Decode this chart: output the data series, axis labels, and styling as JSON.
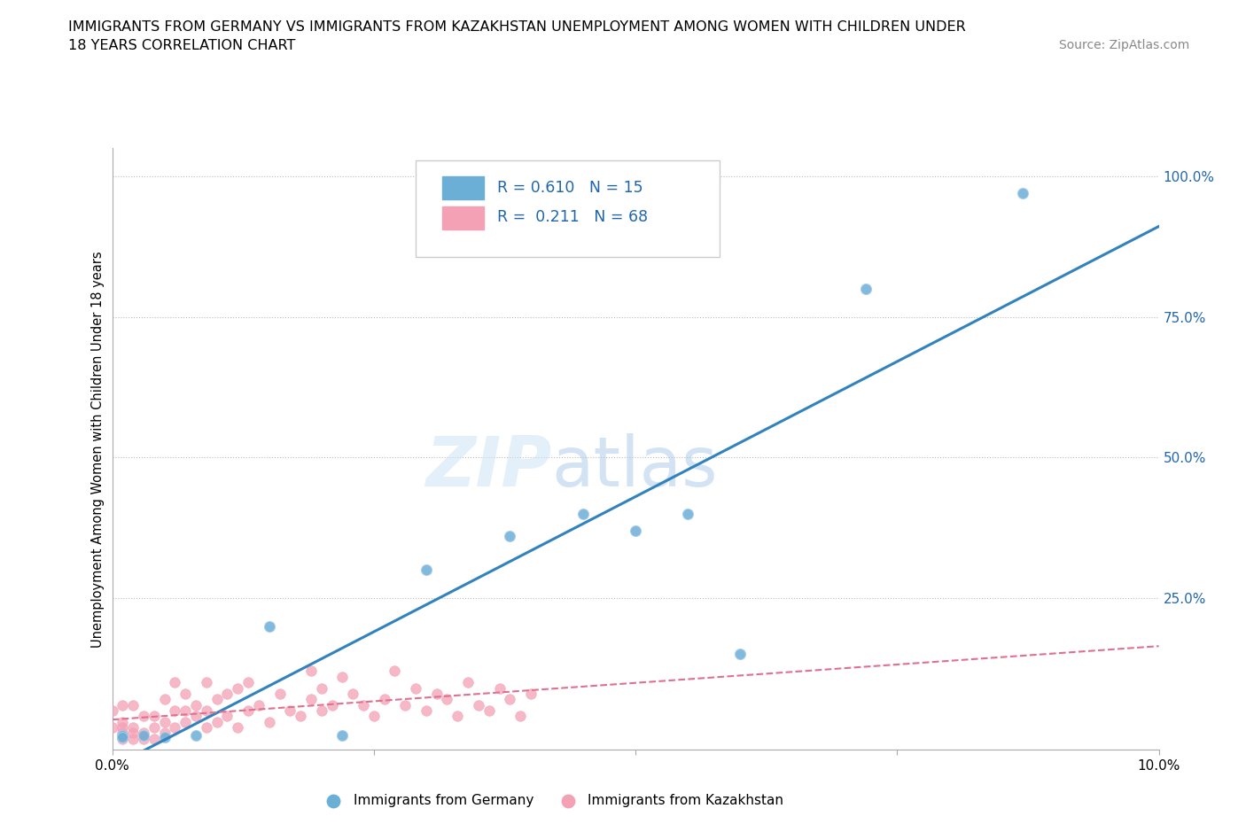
{
  "title_line1": "IMMIGRANTS FROM GERMANY VS IMMIGRANTS FROM KAZAKHSTAN UNEMPLOYMENT AMONG WOMEN WITH CHILDREN UNDER",
  "title_line2": "18 YEARS CORRELATION CHART",
  "source": "Source: ZipAtlas.com",
  "ylabel": "Unemployment Among Women with Children Under 18 years",
  "xlim": [
    0.0,
    0.1
  ],
  "ylim": [
    -0.02,
    1.05
  ],
  "legend_germany_R": "0.610",
  "legend_germany_N": "15",
  "legend_kazakhstan_R": "0.211",
  "legend_kazakhstan_N": "68",
  "watermark_zip": "ZIP",
  "watermark_atlas": "atlas",
  "color_germany": "#6baed6",
  "color_germany_line": "#3182bd",
  "color_kazakhstan": "#f4a0b5",
  "color_kazakhstan_line": "#e07090",
  "color_text_blue": "#2166ac",
  "color_grid": "#bbbbbb",
  "germany_x": [
    0.001,
    0.001,
    0.003,
    0.005,
    0.008,
    0.015,
    0.022,
    0.03,
    0.038,
    0.045,
    0.05,
    0.055,
    0.06,
    0.072,
    0.087
  ],
  "germany_y": [
    0.005,
    0.002,
    0.005,
    0.003,
    0.005,
    0.2,
    0.005,
    0.3,
    0.36,
    0.4,
    0.37,
    0.4,
    0.15,
    0.8,
    0.97
  ],
  "kazakhstan_x": [
    0.0,
    0.0,
    0.001,
    0.001,
    0.001,
    0.001,
    0.001,
    0.002,
    0.002,
    0.002,
    0.002,
    0.003,
    0.003,
    0.003,
    0.004,
    0.004,
    0.004,
    0.005,
    0.005,
    0.005,
    0.006,
    0.006,
    0.006,
    0.007,
    0.007,
    0.007,
    0.008,
    0.008,
    0.009,
    0.009,
    0.009,
    0.01,
    0.01,
    0.011,
    0.011,
    0.012,
    0.012,
    0.013,
    0.013,
    0.014,
    0.015,
    0.016,
    0.017,
    0.018,
    0.019,
    0.019,
    0.02,
    0.02,
    0.021,
    0.022,
    0.023,
    0.024,
    0.025,
    0.026,
    0.027,
    0.028,
    0.029,
    0.03,
    0.031,
    0.032,
    0.033,
    0.034,
    0.035,
    0.036,
    0.037,
    0.038,
    0.039,
    0.04
  ],
  "kazakhstan_y": [
    0.02,
    0.05,
    0.0,
    0.01,
    0.02,
    0.03,
    0.06,
    0.0,
    0.01,
    0.02,
    0.06,
    0.0,
    0.01,
    0.04,
    0.0,
    0.02,
    0.04,
    0.01,
    0.03,
    0.07,
    0.02,
    0.05,
    0.1,
    0.03,
    0.05,
    0.08,
    0.04,
    0.06,
    0.02,
    0.05,
    0.1,
    0.03,
    0.07,
    0.04,
    0.08,
    0.02,
    0.09,
    0.05,
    0.1,
    0.06,
    0.03,
    0.08,
    0.05,
    0.04,
    0.07,
    0.12,
    0.05,
    0.09,
    0.06,
    0.11,
    0.08,
    0.06,
    0.04,
    0.07,
    0.12,
    0.06,
    0.09,
    0.05,
    0.08,
    0.07,
    0.04,
    0.1,
    0.06,
    0.05,
    0.09,
    0.07,
    0.04,
    0.08
  ]
}
